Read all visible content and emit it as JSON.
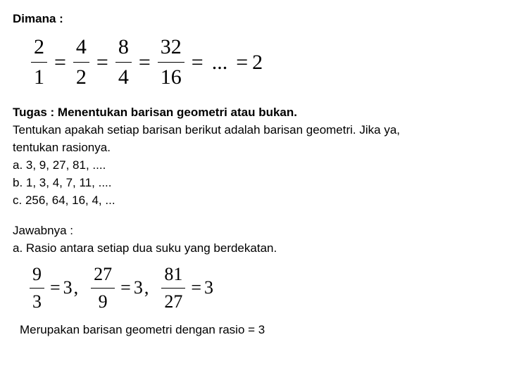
{
  "header": {
    "dimana": "Dimana :"
  },
  "eq1": {
    "f1": {
      "num": "2",
      "den": "1"
    },
    "f2": {
      "num": "4",
      "den": "2"
    },
    "f3": {
      "num": "8",
      "den": "4"
    },
    "f4": {
      "num": "32",
      "den": "16"
    },
    "dots": "...",
    "eq_sign": "=",
    "result": "2"
  },
  "tugas": {
    "title": "Tugas : Menentukan barisan geometri atau bukan.",
    "desc1": "Tentukan apakah setiap barisan berikut adalah barisan geometri. Jika ya,",
    "desc2": "tentukan rasionya.",
    "a": "a. 3, 9, 27, 81, ....",
    "b": "b. 1, 3, 4, 7, 11, ....",
    "c": "c. 256, 64, 16, 4, ..."
  },
  "jawab": {
    "title": "Jawabnya :",
    "a_text": "a. Rasio antara setiap  dua suku yang berdekatan."
  },
  "eq2": {
    "f1": {
      "num": "9",
      "den": "3",
      "res": "3"
    },
    "f2": {
      "num": "27",
      "den": "9",
      "res": "3"
    },
    "f3": {
      "num": "81",
      "den": "27",
      "res": "3"
    },
    "eq_sign": "=",
    "comma": ","
  },
  "concl": "Merupakan barisan geometri dengan rasio = 3"
}
